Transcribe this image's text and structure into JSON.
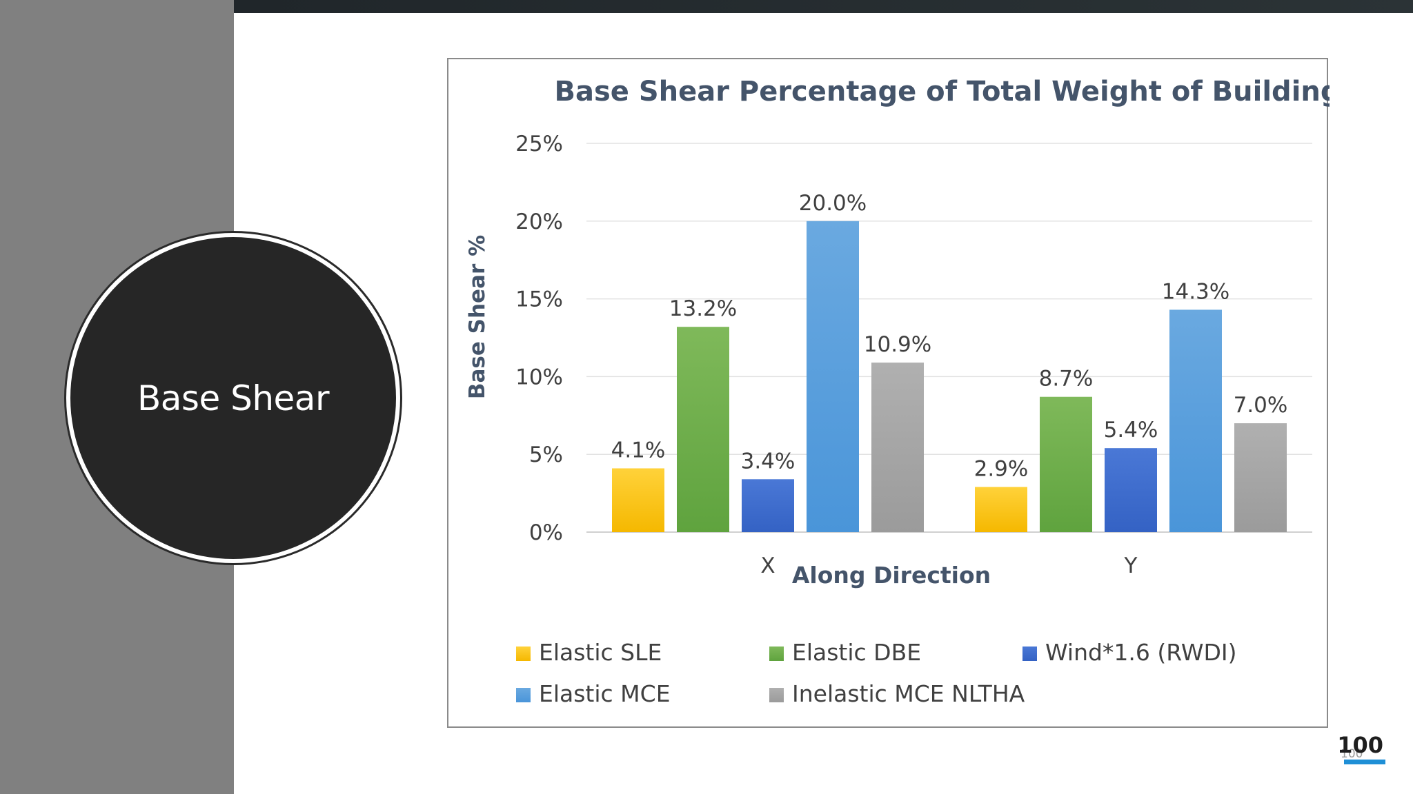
{
  "slide": {
    "section_title": "Base Shear",
    "page_number": "100",
    "page_number_ghost": "100"
  },
  "colors": {
    "left_panel": "#808080",
    "circle": "#262626",
    "top_bar": "#252c2f",
    "page_underline": "#1f8fd6"
  },
  "chart_data": {
    "type": "bar",
    "title": "Base Shear Percentage of Total Weight of Building",
    "xlabel": "Along Direction",
    "ylabel": "Base Shear %",
    "categories": [
      "X",
      "Y"
    ],
    "ylim": [
      0,
      25
    ],
    "yticks": [
      "0%",
      "5%",
      "10%",
      "15%",
      "20%",
      "25%"
    ],
    "grid": true,
    "legend_position": "bottom",
    "series": [
      {
        "name": "Elastic SLE",
        "values": [
          4.1,
          2.9
        ],
        "labels": [
          "4.1%",
          "2.9%"
        ],
        "color": "#f5b800",
        "color_light": "#ffd23a"
      },
      {
        "name": "Elastic DBE",
        "values": [
          13.2,
          8.7
        ],
        "labels": [
          "13.2%",
          "8.7%"
        ],
        "color": "#5fa33e",
        "color_light": "#7fb95a"
      },
      {
        "name": "Wind*1.6 (RWDI)",
        "values": [
          3.4,
          5.4
        ],
        "labels": [
          "3.4%",
          "5.4%"
        ],
        "color": "#3462c4",
        "color_light": "#4a78d6"
      },
      {
        "name": "Elastic MCE",
        "values": [
          20.0,
          14.3
        ],
        "labels": [
          "20.0%",
          "14.3%"
        ],
        "color": "#4a95d9",
        "color_light": "#6aa9e0"
      },
      {
        "name": "Inelastic MCE NLTHA",
        "values": [
          10.9,
          7.0
        ],
        "labels": [
          "10.9%",
          "7.0%"
        ],
        "color": "#9b9b9b",
        "color_light": "#b0b0b0"
      }
    ]
  }
}
